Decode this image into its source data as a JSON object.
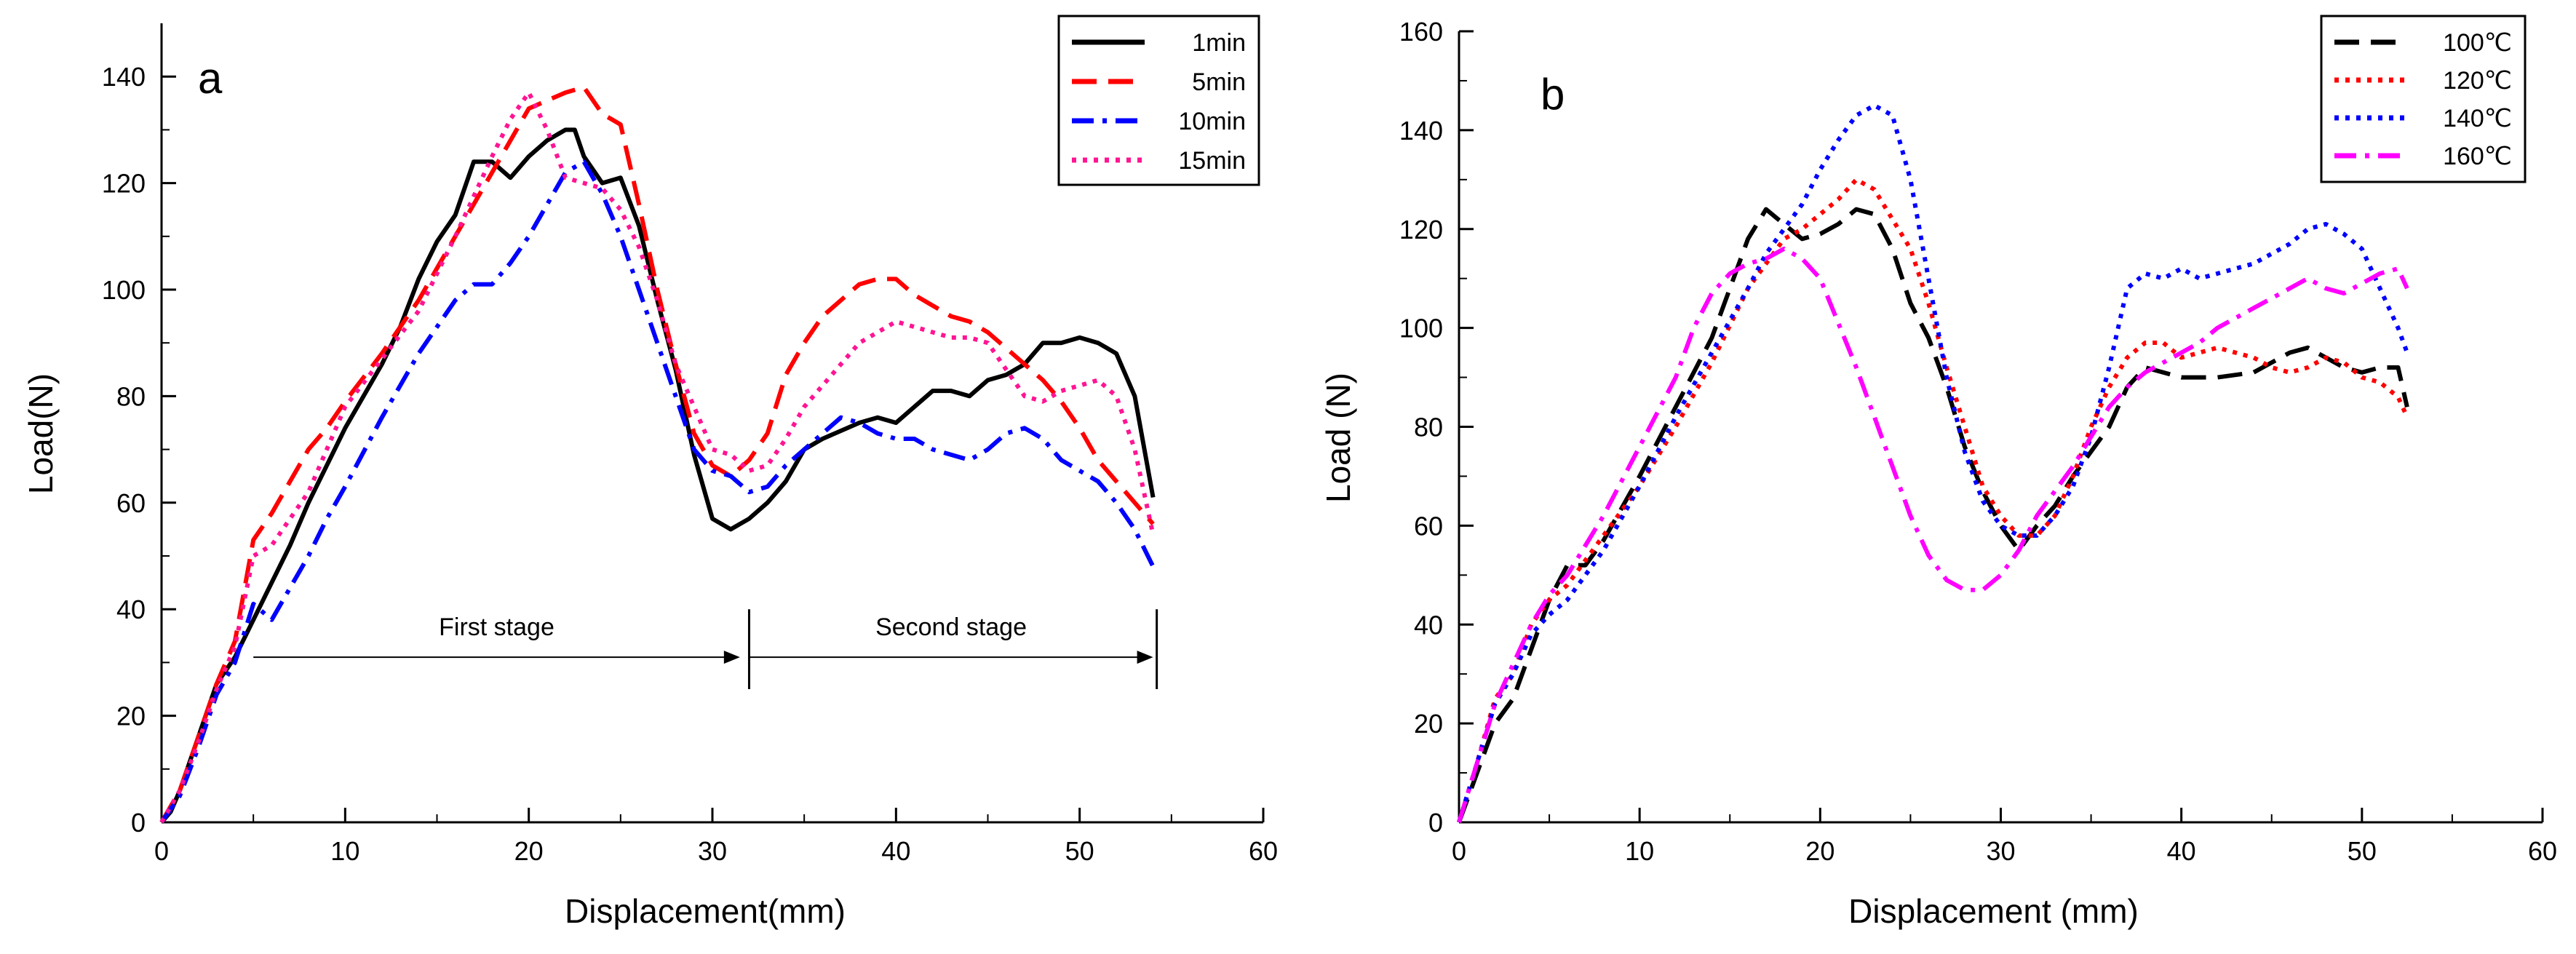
{
  "chart_data": [
    {
      "type": "line",
      "panel_label": "a",
      "xlabel": "Displacement(mm)",
      "ylabel": "Load(N)",
      "xlim": [
        0,
        60
      ],
      "ylim": [
        0,
        150
      ],
      "xticks": [
        0,
        10,
        20,
        30,
        40,
        50,
        60
      ],
      "yticks": [
        0,
        20,
        40,
        60,
        80,
        100,
        120,
        140
      ],
      "grid": false,
      "legend_position": "top-right",
      "annotations": [
        {
          "text": "First stage",
          "from": 5,
          "to": 31.5,
          "y": 31
        },
        {
          "text": "Second stage",
          "from": 32,
          "to": 54,
          "y": 31
        }
      ],
      "stage_divider_x": [
        32,
        54.2
      ],
      "series": [
        {
          "name": "1min",
          "color": "#000000",
          "dash": "solid",
          "x": [
            0,
            0.5,
            1,
            2,
            3,
            4,
            5,
            6,
            7,
            8,
            9,
            10,
            12,
            13,
            14,
            15,
            16,
            17,
            18,
            19,
            20,
            21,
            22,
            22.5,
            23,
            24,
            25,
            26,
            27,
            28,
            29,
            30,
            31,
            32,
            33,
            34,
            35,
            36,
            38,
            39,
            40,
            41,
            42,
            43,
            44,
            45,
            46,
            47,
            48,
            49,
            50,
            51,
            52,
            53,
            54
          ],
          "y": [
            0,
            2,
            6,
            16,
            26,
            31,
            38,
            45,
            52,
            60,
            67,
            74,
            86,
            93,
            102,
            109,
            114,
            124,
            124,
            121,
            125,
            128,
            130,
            130,
            125,
            120,
            121,
            112,
            98,
            85,
            69,
            57,
            55,
            57,
            60,
            64,
            70,
            72,
            75,
            76,
            75,
            78,
            81,
            81,
            80,
            83,
            84,
            86,
            90,
            90,
            91,
            90,
            88,
            80,
            61
          ]
        },
        {
          "name": "5min",
          "color": "#ff0000",
          "dash": "long",
          "x": [
            0,
            1,
            2,
            3,
            4,
            5,
            6,
            7,
            8,
            9,
            10,
            12,
            14,
            16,
            18,
            20,
            22,
            23,
            24,
            25,
            26,
            27,
            28,
            29,
            30,
            31,
            32,
            33,
            34,
            35,
            36,
            37,
            38,
            39,
            40,
            41,
            42,
            43,
            44,
            45,
            46,
            47,
            48,
            49,
            50,
            51,
            52,
            53,
            54
          ],
          "y": [
            0,
            6,
            16,
            26,
            34,
            53,
            58,
            64,
            70,
            74,
            79,
            88,
            98,
            110,
            122,
            134,
            137,
            138,
            133,
            131,
            116,
            100,
            86,
            73,
            67,
            65,
            68,
            73,
            84,
            90,
            95,
            98,
            101,
            102,
            102,
            99,
            97,
            95,
            94,
            92,
            89,
            86,
            83,
            79,
            74,
            68,
            64,
            60,
            56
          ]
        },
        {
          "name": "10min",
          "color": "#0000ff",
          "dash": "dashdot",
          "x": [
            0,
            1,
            2,
            3,
            4,
            5,
            6,
            7,
            8,
            9,
            10,
            12,
            14,
            16,
            17,
            18,
            19,
            20,
            21,
            22,
            23,
            24,
            25,
            26,
            27,
            28,
            29,
            30,
            31,
            32,
            33,
            34,
            35,
            36,
            37,
            38,
            39,
            40,
            41,
            42,
            43,
            44,
            45,
            46,
            47,
            48,
            49,
            50,
            51,
            52,
            53,
            54
          ],
          "y": [
            0,
            5,
            14,
            24,
            30,
            41,
            38,
            44,
            50,
            57,
            63,
            76,
            88,
            98,
            101,
            101,
            105,
            110,
            116,
            122,
            124,
            118,
            110,
            100,
            90,
            80,
            70,
            66,
            65,
            62,
            63,
            67,
            70,
            73,
            76,
            75,
            73,
            72,
            72,
            70,
            69,
            68,
            70,
            73,
            74,
            72,
            68,
            66,
            64,
            60,
            55,
            48
          ]
        },
        {
          "name": "15min",
          "color": "#ff1493",
          "dash": "dot",
          "x": [
            0,
            1,
            2,
            3,
            4,
            5,
            6,
            7,
            8,
            9,
            10,
            12,
            14,
            16,
            18,
            19,
            20,
            21,
            22,
            23,
            24,
            25,
            26,
            27,
            28,
            29,
            30,
            31,
            32,
            33,
            34,
            35,
            36,
            37,
            38,
            39,
            40,
            41,
            42,
            43,
            44,
            45,
            46,
            47,
            48,
            49,
            50,
            51,
            52,
            53,
            54
          ],
          "y": [
            0,
            6,
            15,
            25,
            33,
            50,
            52,
            57,
            62,
            70,
            78,
            87,
            96,
            110,
            125,
            132,
            137,
            130,
            121,
            120,
            119,
            115,
            108,
            98,
            86,
            78,
            70,
            69,
            66,
            67,
            72,
            78,
            82,
            86,
            90,
            92,
            94,
            93,
            92,
            91,
            91,
            90,
            85,
            80,
            79,
            81,
            82,
            83,
            80,
            70,
            54
          ]
        }
      ]
    },
    {
      "type": "line",
      "panel_label": "b",
      "xlabel": "Displacement (mm)",
      "ylabel": "Load (N)",
      "xlim": [
        0,
        60
      ],
      "ylim": [
        0,
        160
      ],
      "xticks": [
        0,
        10,
        20,
        30,
        40,
        50,
        60
      ],
      "yticks": [
        0,
        20,
        40,
        60,
        80,
        100,
        120,
        140,
        160
      ],
      "grid": false,
      "legend_position": "top-right",
      "series": [
        {
          "name": "100℃",
          "color": "#000000",
          "dash": "long",
          "x": [
            0,
            1,
            2,
            3,
            4,
            5,
            6,
            7,
            8,
            10,
            12,
            14,
            15,
            16,
            17,
            18,
            19,
            20,
            21,
            22,
            23,
            24,
            25,
            26,
            27,
            28,
            29,
            30,
            31,
            32,
            33,
            34,
            35,
            36,
            37,
            38,
            40,
            42,
            44,
            46,
            47,
            48,
            49,
            50,
            51,
            52,
            52.5
          ],
          "y": [
            0,
            10,
            20,
            25,
            35,
            45,
            52,
            52,
            57,
            70,
            84,
            98,
            108,
            118,
            124,
            121,
            118,
            119,
            121,
            124,
            123,
            116,
            105,
            98,
            88,
            76,
            67,
            60,
            55,
            60,
            64,
            70,
            75,
            80,
            88,
            92,
            90,
            90,
            91,
            95,
            96,
            94,
            92,
            91,
            92,
            92,
            84
          ]
        },
        {
          "name": "120℃",
          "color": "#ff0000",
          "dash": "dot",
          "x": [
            0,
            1,
            2,
            3,
            4,
            5,
            6,
            8,
            10,
            12,
            14,
            16,
            18,
            19,
            20,
            21,
            22,
            23,
            24,
            25,
            26,
            27,
            28,
            29,
            30,
            31,
            32,
            33,
            34,
            35,
            36,
            37,
            38,
            39,
            40,
            41,
            42,
            43,
            44,
            45,
            46,
            47,
            48,
            49,
            50,
            51,
            52,
            52.5
          ],
          "y": [
            0,
            12,
            25,
            30,
            40,
            45,
            48,
            58,
            68,
            80,
            93,
            108,
            118,
            120,
            123,
            126,
            130,
            128,
            122,
            116,
            105,
            92,
            80,
            68,
            62,
            58,
            58,
            62,
            70,
            80,
            88,
            94,
            97,
            97,
            94,
            95,
            96,
            95,
            94,
            92,
            91,
            92,
            94,
            93,
            90,
            89,
            86,
            82
          ]
        },
        {
          "name": "140℃",
          "color": "#0000ff",
          "dash": "dot",
          "x": [
            0,
            1,
            2,
            3,
            4,
            5,
            6,
            8,
            10,
            12,
            14,
            16,
            17,
            18,
            19,
            20,
            21,
            22,
            23,
            24,
            25,
            26,
            27,
            28,
            29,
            30,
            31,
            32,
            33,
            34,
            35,
            36,
            37,
            38,
            39,
            40,
            41,
            42,
            44,
            46,
            47,
            48,
            49,
            50,
            51,
            52,
            52.5
          ],
          "y": [
            0,
            12,
            24,
            30,
            38,
            42,
            45,
            55,
            68,
            82,
            95,
            108,
            115,
            120,
            125,
            132,
            138,
            143,
            145,
            143,
            130,
            110,
            90,
            75,
            65,
            60,
            58,
            58,
            62,
            68,
            78,
            92,
            108,
            111,
            110,
            112,
            110,
            111,
            113,
            117,
            120,
            121,
            119,
            116,
            108,
            100,
            95
          ]
        },
        {
          "name": "160℃",
          "color": "#ff00ff",
          "dash": "dashdot",
          "x": [
            0,
            1,
            2,
            3,
            4,
            5,
            6,
            8,
            10,
            12,
            13,
            14,
            15,
            16,
            17,
            18,
            19,
            20,
            21,
            22,
            23,
            24,
            25,
            26,
            27,
            28,
            29,
            30,
            31,
            32,
            33,
            34,
            35,
            36,
            37,
            38,
            39,
            40,
            41,
            42,
            43,
            44,
            45,
            46,
            47,
            48,
            49,
            50,
            51,
            52,
            52.5
          ],
          "y": [
            0,
            12,
            24,
            32,
            40,
            46,
            50,
            62,
            76,
            90,
            100,
            107,
            111,
            113,
            114,
            116,
            114,
            110,
            101,
            92,
            82,
            72,
            62,
            54,
            49,
            47,
            47,
            50,
            55,
            62,
            67,
            72,
            78,
            84,
            88,
            91,
            93,
            95,
            97,
            100,
            102,
            104,
            106,
            108,
            110,
            108,
            107,
            109,
            111,
            112,
            108
          ]
        }
      ]
    }
  ]
}
